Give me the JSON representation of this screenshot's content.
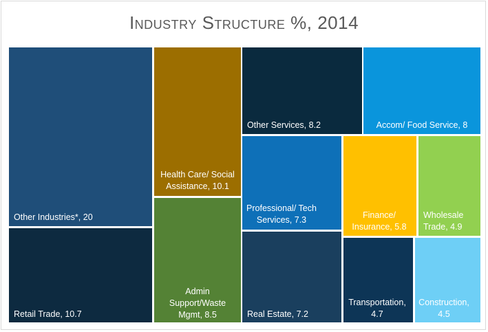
{
  "chart_data": {
    "type": "treemap",
    "title": "Industry Structure %, 2014",
    "items": [
      {
        "label": "Other Industries*, 20",
        "value": 20,
        "color": "#1f4e79",
        "text_color": "#ffffff"
      },
      {
        "label": "Retail Trade, 10.7",
        "value": 10.7,
        "color": "#0d2a40",
        "text_color": "#ffffff"
      },
      {
        "label": "Health Care/ Social Assistance, 10.1",
        "value": 10.1,
        "color": "#9c6e00",
        "text_color": "#ffffff"
      },
      {
        "label": "Admin Support/Waste Mgmt, 8.5",
        "value": 8.5,
        "color": "#548235",
        "text_color": "#ffffff"
      },
      {
        "label": "Other Services, 8.2",
        "value": 8.2,
        "color": "#0a2a3e",
        "text_color": "#ffffff"
      },
      {
        "label": "Accom/ Food Service, 8",
        "value": 8,
        "color": "#0a95dc",
        "text_color": "#ffffff"
      },
      {
        "label": "Professional/ Tech Services, 7.3",
        "value": 7.3,
        "color": "#0e70b8",
        "text_color": "#ffffff"
      },
      {
        "label": "Real Estate, 7.2",
        "value": 7.2,
        "color": "#1a3f5e",
        "text_color": "#ffffff"
      },
      {
        "label": "Finance/ Insurance, 5.8",
        "value": 5.8,
        "color": "#ffc000",
        "text_color": "#ffffff"
      },
      {
        "label": "Wholesale Trade, 4.9",
        "value": 4.9,
        "color": "#92d050",
        "text_color": "#ffffff"
      },
      {
        "label": "Transportation, 4.7",
        "value": 4.7,
        "color": "#0d3556",
        "text_color": "#ffffff"
      },
      {
        "label": "Construction, 4.5",
        "value": 4.5,
        "color": "#6ecff6",
        "text_color": "#ffffff"
      }
    ]
  }
}
